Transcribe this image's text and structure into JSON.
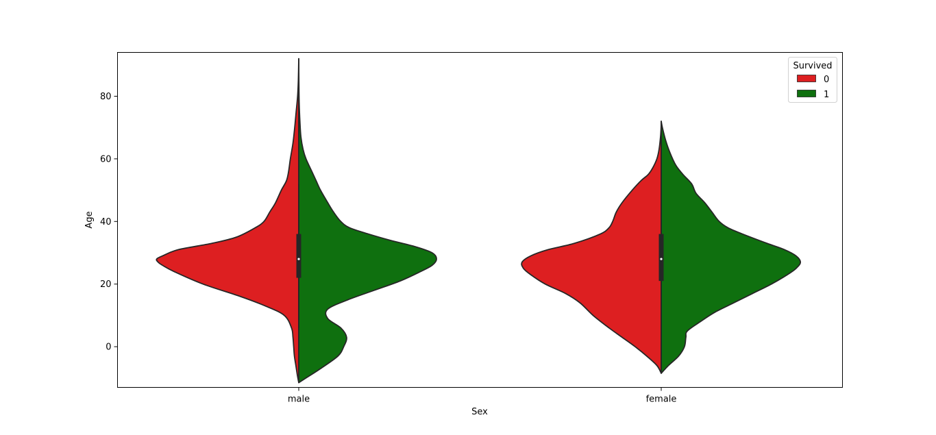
{
  "chart_data": {
    "type": "violin",
    "split": true,
    "xlabel": "Sex",
    "ylabel": "Age",
    "categories": [
      "male",
      "female"
    ],
    "ylim": [
      -13,
      94
    ],
    "yticks": [
      0,
      20,
      40,
      60,
      80
    ],
    "grid": false,
    "legend": {
      "title": "Survived",
      "placement": "top-right",
      "entries": [
        {
          "label": "0",
          "color": "#dd1f21"
        },
        {
          "label": "1",
          "color": "#0f700f"
        }
      ]
    },
    "series": [
      {
        "name": "0",
        "side": "left",
        "color": "#dd1f21",
        "groups": [
          {
            "category": "male",
            "profile": [
              [
                -11.5,
                0
              ],
              [
                -9,
                0.01
              ],
              [
                -6,
                0.02
              ],
              [
                -3,
                0.03
              ],
              [
                0,
                0.035
              ],
              [
                3,
                0.04
              ],
              [
                6,
                0.05
              ],
              [
                10,
                0.1
              ],
              [
                13,
                0.23
              ],
              [
                16,
                0.4
              ],
              [
                20,
                0.66
              ],
              [
                24,
                0.86
              ],
              [
                26,
                0.94
              ],
              [
                27,
                0.97
              ],
              [
                28,
                0.98
              ],
              [
                29,
                0.94
              ],
              [
                31,
                0.83
              ],
              [
                33,
                0.6
              ],
              [
                35,
                0.43
              ],
              [
                38,
                0.3
              ],
              [
                40,
                0.24
              ],
              [
                43,
                0.2
              ],
              [
                46,
                0.16
              ],
              [
                50,
                0.12
              ],
              [
                53,
                0.085
              ],
              [
                56,
                0.07
              ],
              [
                60,
                0.058
              ],
              [
                65,
                0.04
              ],
              [
                70,
                0.028
              ],
              [
                75,
                0.018
              ],
              [
                80,
                0.008
              ],
              [
                85,
                0.003
              ],
              [
                92,
                0
              ]
            ]
          },
          {
            "category": "female",
            "profile": [
              [
                -8.5,
                0
              ],
              [
                -6,
                0.03
              ],
              [
                -3,
                0.1
              ],
              [
                0,
                0.18
              ],
              [
                3,
                0.27
              ],
              [
                6,
                0.36
              ],
              [
                10,
                0.47
              ],
              [
                14,
                0.56
              ],
              [
                17,
                0.66
              ],
              [
                20,
                0.8
              ],
              [
                23,
                0.9
              ],
              [
                25,
                0.95
              ],
              [
                27,
                0.96
              ],
              [
                29,
                0.9
              ],
              [
                31,
                0.78
              ],
              [
                33,
                0.6
              ],
              [
                36,
                0.42
              ],
              [
                38,
                0.36
              ],
              [
                40,
                0.335
              ],
              [
                43,
                0.31
              ],
              [
                46,
                0.27
              ],
              [
                50,
                0.2
              ],
              [
                53,
                0.14
              ],
              [
                55,
                0.09
              ],
              [
                57,
                0.06
              ],
              [
                60,
                0.03
              ],
              [
                63,
                0.015
              ],
              [
                67,
                0.005
              ],
              [
                70,
                0.001
              ],
              [
                72,
                0
              ]
            ]
          }
        ]
      },
      {
        "name": "1",
        "side": "right",
        "color": "#0f700f",
        "groups": [
          {
            "category": "male",
            "profile": [
              [
                -11.5,
                0
              ],
              [
                -10,
                0.05
              ],
              [
                -7,
                0.15
              ],
              [
                -3,
                0.27
              ],
              [
                0,
                0.31
              ],
              [
                3,
                0.33
              ],
              [
                6,
                0.29
              ],
              [
                9,
                0.2
              ],
              [
                12,
                0.2
              ],
              [
                15,
                0.34
              ],
              [
                18,
                0.52
              ],
              [
                21,
                0.7
              ],
              [
                24,
                0.84
              ],
              [
                26,
                0.92
              ],
              [
                28,
                0.95
              ],
              [
                30,
                0.92
              ],
              [
                32,
                0.8
              ],
              [
                34,
                0.63
              ],
              [
                36,
                0.48
              ],
              [
                38,
                0.35
              ],
              [
                40,
                0.29
              ],
              [
                43,
                0.24
              ],
              [
                46,
                0.2
              ],
              [
                50,
                0.15
              ],
              [
                53,
                0.12
              ],
              [
                56,
                0.09
              ],
              [
                60,
                0.05
              ],
              [
                63,
                0.03
              ],
              [
                67,
                0.015
              ],
              [
                72,
                0.008
              ],
              [
                78,
                0.003
              ],
              [
                85,
                0.001
              ],
              [
                92,
                0
              ]
            ]
          },
          {
            "category": "female",
            "profile": [
              [
                -8.5,
                0
              ],
              [
                -6,
                0.05
              ],
              [
                -3,
                0.12
              ],
              [
                0,
                0.16
              ],
              [
                3,
                0.17
              ],
              [
                5,
                0.18
              ],
              [
                8,
                0.27
              ],
              [
                11,
                0.37
              ],
              [
                14,
                0.5
              ],
              [
                17,
                0.63
              ],
              [
                20,
                0.76
              ],
              [
                23,
                0.87
              ],
              [
                25,
                0.93
              ],
              [
                27,
                0.96
              ],
              [
                29,
                0.93
              ],
              [
                31,
                0.85
              ],
              [
                33,
                0.73
              ],
              [
                36,
                0.56
              ],
              [
                38,
                0.46
              ],
              [
                40,
                0.4
              ],
              [
                43,
                0.35
              ],
              [
                46,
                0.3
              ],
              [
                49,
                0.24
              ],
              [
                52,
                0.21
              ],
              [
                55,
                0.15
              ],
              [
                58,
                0.1
              ],
              [
                62,
                0.06
              ],
              [
                66,
                0.03
              ],
              [
                70,
                0.008
              ],
              [
                72,
                0
              ]
            ]
          }
        ]
      }
    ],
    "boxes": [
      {
        "category": "male",
        "q1": 22,
        "median": 28,
        "q3": 36,
        "whisker_low": 6,
        "whisker_high": 52
      },
      {
        "category": "female",
        "q1": 21,
        "median": 28,
        "q3": 36,
        "whisker_low": -8,
        "whisker_high": 67
      }
    ]
  }
}
